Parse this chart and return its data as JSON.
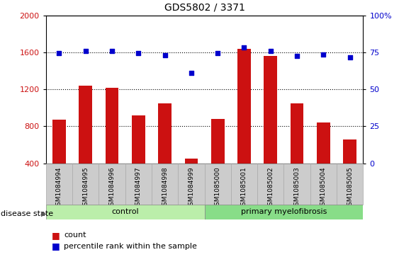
{
  "title": "GDS5802 / 3371",
  "categories": [
    "GSM1084994",
    "GSM1084995",
    "GSM1084996",
    "GSM1084997",
    "GSM1084998",
    "GSM1084999",
    "GSM1085000",
    "GSM1085001",
    "GSM1085002",
    "GSM1085003",
    "GSM1085004",
    "GSM1085005"
  ],
  "bar_values": [
    870,
    1240,
    1220,
    920,
    1050,
    450,
    880,
    1640,
    1560,
    1050,
    840,
    660
  ],
  "scatter_values": [
    1590,
    1615,
    1615,
    1590,
    1570,
    1380,
    1595,
    1650,
    1615,
    1565,
    1580,
    1545
  ],
  "bar_color": "#cc1111",
  "scatter_color": "#0000cc",
  "ylim_left": [
    400,
    2000
  ],
  "ylim_right": [
    0,
    100
  ],
  "yticks_left": [
    400,
    800,
    1200,
    1600,
    2000
  ],
  "yticks_right": [
    0,
    25,
    50,
    75,
    100
  ],
  "grid_values": [
    800,
    1200,
    1600
  ],
  "control_count": 6,
  "myelofibrosis_count": 6,
  "control_label": "control",
  "myelofibrosis_label": "primary myelofibrosis",
  "disease_state_label": "disease state",
  "legend_count_label": "count",
  "legend_percentile_label": "percentile rank within the sample",
  "control_color": "#bbeeaa",
  "myelofibrosis_color": "#88dd88",
  "xlabel_area_color": "#cccccc",
  "bar_bottom": 400,
  "bar_width": 0.5
}
